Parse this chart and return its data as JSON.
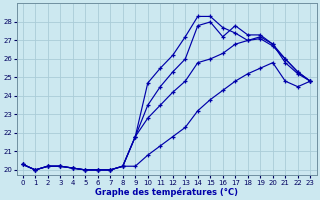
{
  "xlabel": "Graphe des températures (°C)",
  "xlim": [
    -0.5,
    23.5
  ],
  "ylim": [
    19.7,
    29.0
  ],
  "background_color": "#cce8f0",
  "grid_color": "#aaccd8",
  "line_color": "#0000aa",
  "xticks": [
    0,
    1,
    2,
    3,
    4,
    5,
    6,
    7,
    8,
    9,
    10,
    11,
    12,
    13,
    14,
    15,
    16,
    17,
    18,
    19,
    20,
    21,
    22,
    23
  ],
  "yticks": [
    20,
    21,
    22,
    23,
    24,
    25,
    26,
    27,
    28
  ],
  "series1_x": [
    0,
    1,
    2,
    3,
    4,
    5,
    6,
    7,
    8,
    9,
    10,
    11,
    12,
    13,
    14,
    15,
    16,
    17,
    18,
    19,
    20,
    21,
    22,
    23
  ],
  "series1_y": [
    20.3,
    20.0,
    20.2,
    20.2,
    20.1,
    20.0,
    20.0,
    20.0,
    20.2,
    21.8,
    24.7,
    25.5,
    26.2,
    27.2,
    28.3,
    28.3,
    27.7,
    27.4,
    27.0,
    27.1,
    26.7,
    26.0,
    25.3,
    24.8
  ],
  "series2_x": [
    0,
    1,
    2,
    3,
    4,
    5,
    6,
    7,
    8,
    9,
    10,
    11,
    12,
    13,
    14,
    15,
    16,
    17,
    18,
    19,
    20,
    21,
    22,
    23
  ],
  "series2_y": [
    20.3,
    20.0,
    20.2,
    20.2,
    20.1,
    20.0,
    20.0,
    20.0,
    20.2,
    21.8,
    23.5,
    24.5,
    25.3,
    26.0,
    27.8,
    28.0,
    27.2,
    27.8,
    27.3,
    27.3,
    26.8,
    25.8,
    25.2,
    24.8
  ],
  "series3_x": [
    0,
    1,
    2,
    3,
    4,
    5,
    6,
    7,
    8,
    9,
    10,
    11,
    12,
    13,
    14,
    15,
    16,
    17,
    18,
    19,
    20,
    21,
    22,
    23
  ],
  "series3_y": [
    20.3,
    20.0,
    20.2,
    20.2,
    20.1,
    20.0,
    20.0,
    20.0,
    20.2,
    21.8,
    22.8,
    23.5,
    24.2,
    24.8,
    25.8,
    26.0,
    26.3,
    26.8,
    27.0,
    27.2,
    26.8,
    26.0,
    25.3,
    24.8
  ],
  "series4_x": [
    0,
    1,
    2,
    3,
    4,
    5,
    6,
    7,
    8,
    9,
    10,
    11,
    12,
    13,
    14,
    15,
    16,
    17,
    18,
    19,
    20,
    21,
    22,
    23
  ],
  "series4_y": [
    20.3,
    20.0,
    20.2,
    20.2,
    20.1,
    20.0,
    20.0,
    20.0,
    20.2,
    20.2,
    20.8,
    21.3,
    21.8,
    22.3,
    23.2,
    23.8,
    24.3,
    24.8,
    25.2,
    25.5,
    25.8,
    24.8,
    24.5,
    24.8
  ]
}
